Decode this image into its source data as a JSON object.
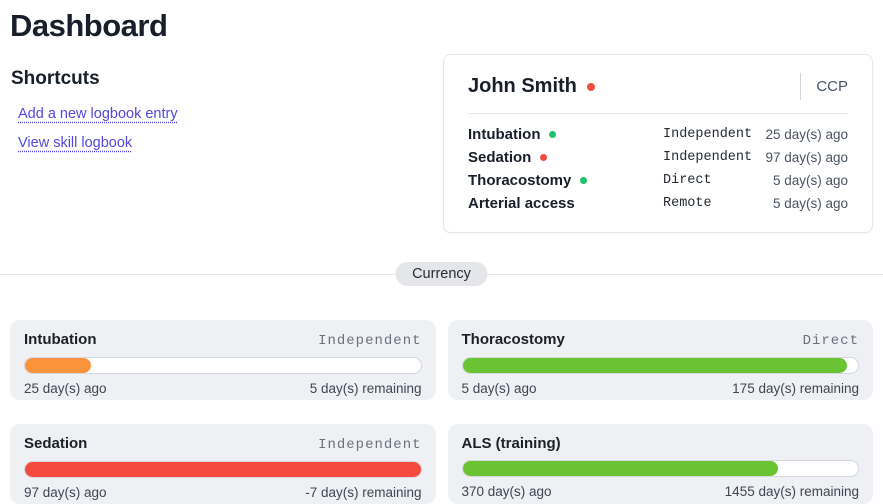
{
  "page": {
    "title": "Dashboard"
  },
  "shortcuts": {
    "heading": "Shortcuts",
    "links": [
      {
        "label": "Add a new logbook entry"
      },
      {
        "label": "View skill logbook"
      }
    ]
  },
  "profile": {
    "name": "John Smith",
    "role": "CCP",
    "name_dot_style": "background:#f0503f",
    "skills": [
      {
        "name": "Intubation",
        "dot_style": "background:#1ec26a",
        "level": "Independent",
        "ago": "25 day(s) ago"
      },
      {
        "name": "Sedation",
        "dot_style": "background:#f04b42",
        "level": "Independent",
        "ago": "97 day(s) ago"
      },
      {
        "name": "Thoracostomy",
        "dot_style": "background:#1ec26a",
        "level": "Direct",
        "ago": "5 day(s) ago"
      },
      {
        "name": "Arterial access",
        "dot_style": "display:none",
        "level": "Remote",
        "ago": "5 day(s) ago"
      }
    ]
  },
  "divider": {
    "label": "Currency"
  },
  "currency_cards": [
    {
      "title": "Intubation",
      "status": "Independent",
      "ago": "25 day(s) ago",
      "remaining": "5 day(s) remaining",
      "percent": "16.7%",
      "bar_style": "width:16.7%;background:#fb923c"
    },
    {
      "title": "Thoracostomy",
      "status": "Direct",
      "ago": "5 day(s) ago",
      "remaining": "175 day(s) remaining",
      "percent": "97.2%",
      "bar_style": "width:97.2%;background:#69c332"
    },
    {
      "title": "Sedation",
      "status": "Independent",
      "ago": "97 day(s) ago",
      "remaining": "-7 day(s) remaining",
      "percent": "100%",
      "bar_style": "width:100%;background:#f4493e"
    },
    {
      "title": "ALS (training)",
      "status": "",
      "ago": "370 day(s) ago",
      "remaining": "1455 day(s) remaining",
      "percent": "79.7%",
      "bar_style": "width:79.7%;background:#69c332"
    }
  ],
  "colors": {
    "link_accent": "#5347e2",
    "bar_orange": "#fb923c",
    "bar_green": "#69c332",
    "bar_red": "#f4493e",
    "dot_green": "#1ec26a",
    "dot_red": "#f04b42",
    "card_background": "#eef0f3"
  }
}
